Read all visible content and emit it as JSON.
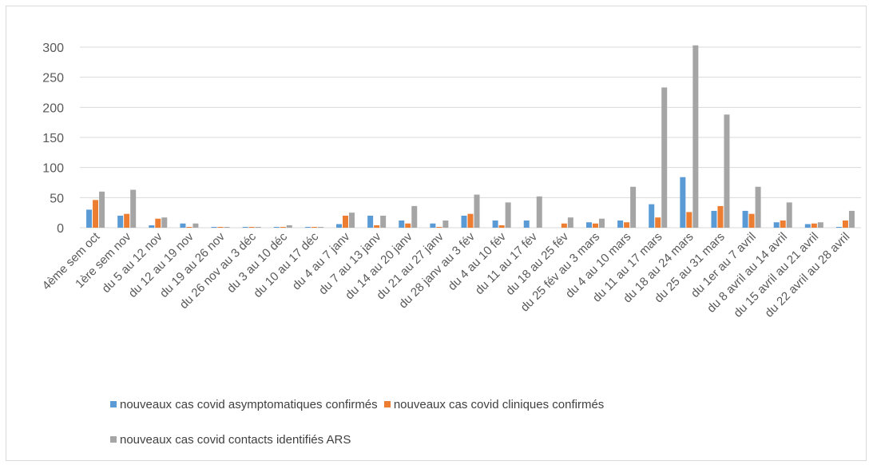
{
  "chart_data": {
    "type": "bar",
    "title": "",
    "xlabel": "",
    "ylabel": "",
    "ylim": [
      0,
      300
    ],
    "yticks": [
      0,
      50,
      100,
      150,
      200,
      250,
      300
    ],
    "grid": true,
    "legend_position": "bottom",
    "categories": [
      "4ème sem oct",
      "1ère sem nov",
      "du 5 au 12 nov",
      "du 12 au 19 nov",
      "du 19 au 26 nov",
      "du 26 nov au 3 déc",
      "du 3 au 10 déc",
      "du 10 au 17 déc",
      "du 4 au 7 janv",
      "du 7 au 13 janv",
      "du 14 au 20 janv",
      "du 21 au 27 janv",
      "du 28 janv au 3 fév",
      "du 4 au 10 fév",
      "du 11 au 17 fév",
      "du 18 au 25 fév",
      "du 25 fév au 3 mars",
      "du 4 au 10 mars",
      "du 11 au 17 mars",
      "du 18 au 24 mars",
      "du 25 au 31 mars",
      "du 1er au 7 avril",
      "du 8 avril au 14 avril",
      "du 15 avril au 21 avril",
      "du 22 avril au 28 avril"
    ],
    "series": [
      {
        "name": "nouveaux cas covid asymptomatiques confirmés",
        "color": "#5B9BD5",
        "values": [
          30,
          20,
          4,
          7,
          1,
          1,
          1,
          1,
          6,
          20,
          12,
          7,
          20,
          12,
          12,
          0,
          9,
          12,
          39,
          84,
          28,
          28,
          9,
          6,
          1
        ]
      },
      {
        "name": "nouveaux cas covid cliniques confirmés",
        "color": "#ED7D31",
        "values": [
          46,
          23,
          15,
          1,
          1,
          1,
          1,
          1,
          20,
          4,
          7,
          1,
          23,
          4,
          0,
          7,
          7,
          9,
          17,
          26,
          36,
          23,
          12,
          7,
          12
        ]
      },
      {
        "name": "nouveaux cas covid contacts identifiés ARS",
        "color": "#A5A5A5",
        "values": [
          60,
          63,
          17,
          7,
          1,
          1,
          4,
          1,
          25,
          20,
          36,
          12,
          55,
          42,
          52,
          17,
          15,
          68,
          233,
          303,
          188,
          68,
          42,
          9,
          28
        ]
      }
    ]
  }
}
